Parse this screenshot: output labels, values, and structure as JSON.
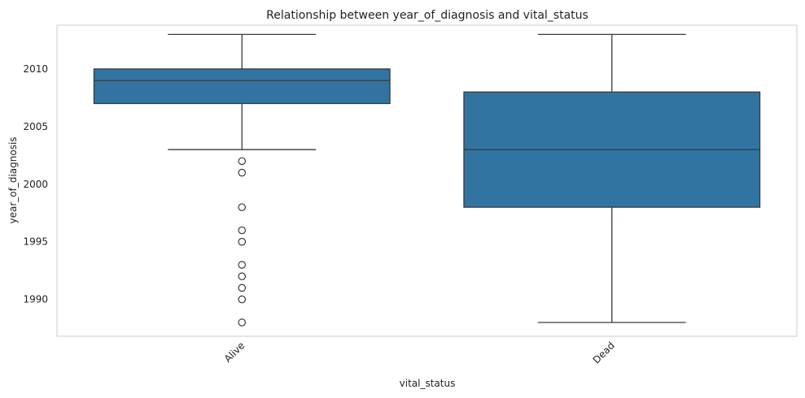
{
  "chart_data": {
    "type": "box",
    "title": "Relationship between year_of_diagnosis and vital_status",
    "xlabel": "vital_status",
    "ylabel": "year_of_diagnosis",
    "categories": [
      "Alive",
      "Dead"
    ],
    "ylim": [
      1986.8,
      2013.8
    ],
    "yticks": [
      1990,
      1995,
      2000,
      2005,
      2010
    ],
    "grid": false,
    "box_color": "#3274a1",
    "line_color": "#3a3a3a",
    "boxes": [
      {
        "name": "Alive",
        "whisker_low": 2003,
        "q1": 2007,
        "median": 2009,
        "q3": 2010,
        "whisker_high": 2013,
        "outliers": [
          2002,
          2001,
          1998,
          1996,
          1995,
          1993,
          1992,
          1991,
          1990,
          1988
        ]
      },
      {
        "name": "Dead",
        "whisker_low": 1988,
        "q1": 1998,
        "median": 2003,
        "q3": 2008,
        "whisker_high": 2013,
        "outliers": []
      }
    ]
  }
}
